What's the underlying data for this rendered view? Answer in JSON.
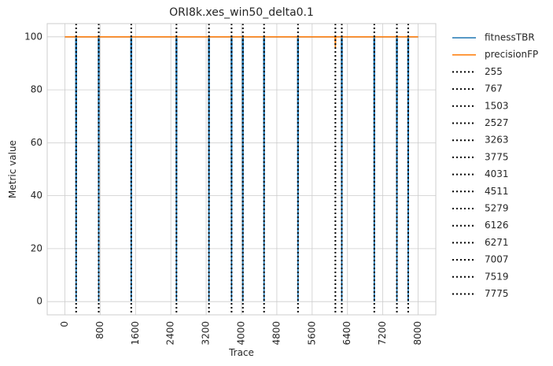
{
  "chart_data": {
    "type": "line",
    "title": "ORI8k.xes_win50_delta0.1",
    "xlabel": "Trace",
    "ylabel": "Metric value",
    "xlim": [
      -400,
      8400
    ],
    "ylim": [
      -5,
      105
    ],
    "xticks": [
      0,
      800,
      1600,
      2400,
      3200,
      4000,
      4800,
      5600,
      6400,
      7200,
      8000
    ],
    "yticks": [
      0,
      20,
      40,
      60,
      80,
      100
    ],
    "grid": true,
    "legend_position": "outside-right",
    "series": [
      {
        "name": "fitnessTBR",
        "color": "#1f77b4",
        "x_start": 0,
        "x_end": 8000,
        "baseline": 100,
        "dips": [
          {
            "x": 255,
            "y": 0
          },
          {
            "x": 767,
            "y": 0
          },
          {
            "x": 1503,
            "y": 0
          },
          {
            "x": 2527,
            "y": 0
          },
          {
            "x": 3263,
            "y": 0
          },
          {
            "x": 3775,
            "y": 0
          },
          {
            "x": 4031,
            "y": 0
          },
          {
            "x": 4511,
            "y": 0
          },
          {
            "x": 5279,
            "y": 0
          },
          {
            "x": 6271,
            "y": 0
          },
          {
            "x": 7007,
            "y": 0
          },
          {
            "x": 7519,
            "y": 0
          },
          {
            "x": 7775,
            "y": 0
          }
        ]
      },
      {
        "name": "precisionFP",
        "color": "#ff7f0e",
        "x_start": 0,
        "x_end": 8000,
        "baseline": 100,
        "dips": [
          {
            "x": 6126,
            "y": 96
          }
        ]
      }
    ],
    "drift_lines": [
      {
        "label": "255",
        "x": 255
      },
      {
        "label": "767",
        "x": 767
      },
      {
        "label": "1503",
        "x": 1503
      },
      {
        "label": "2527",
        "x": 2527
      },
      {
        "label": "3263",
        "x": 3263
      },
      {
        "label": "3775",
        "x": 3775
      },
      {
        "label": "4031",
        "x": 4031
      },
      {
        "label": "4511",
        "x": 4511
      },
      {
        "label": "5279",
        "x": 5279
      },
      {
        "label": "6126",
        "x": 6126
      },
      {
        "label": "6271",
        "x": 6271
      },
      {
        "label": "7007",
        "x": 7007
      },
      {
        "label": "7519",
        "x": 7519
      },
      {
        "label": "7775",
        "x": 7775
      }
    ]
  }
}
